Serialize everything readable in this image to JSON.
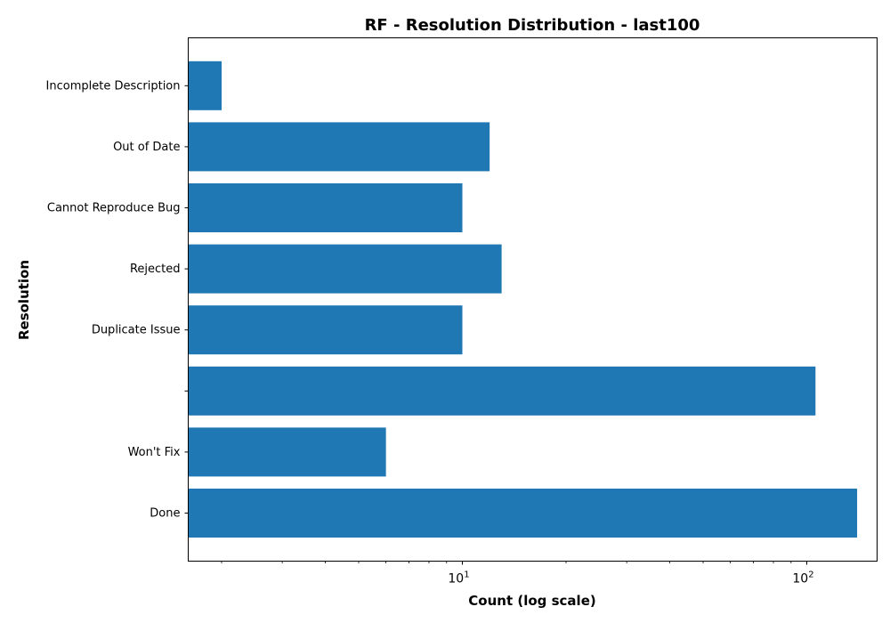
{
  "chart_data": {
    "type": "bar",
    "orientation": "horizontal",
    "title": "RF - Resolution Distribution - last100",
    "xlabel": "Count (log scale)",
    "ylabel": "Resolution",
    "x_scale": "log",
    "xlim": [
      1.6,
      160
    ],
    "x_ticks": [
      {
        "value": 10,
        "base": "10",
        "exp": "1"
      },
      {
        "value": 100,
        "base": "10",
        "exp": "2"
      }
    ],
    "categories": [
      "Done",
      "Won't Fix",
      "",
      "Duplicate Issue",
      "Rejected",
      "Cannot Reproduce Bug",
      "Out of Date",
      "Incomplete Description"
    ],
    "values": [
      140,
      6,
      106,
      10,
      13,
      10,
      12,
      2
    ],
    "bar_color": "#1f77b4",
    "grid": false,
    "legend": "none"
  }
}
